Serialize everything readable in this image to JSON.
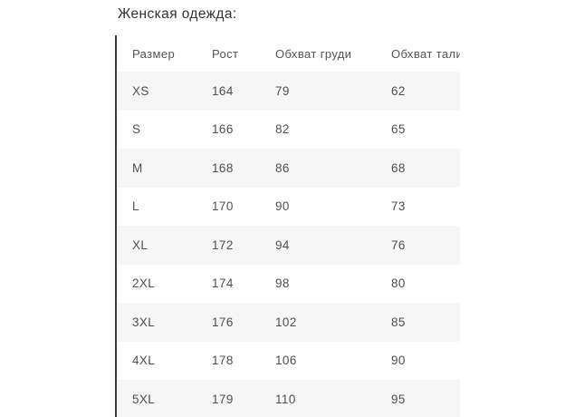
{
  "title": "Женская одежда:",
  "table": {
    "columns": [
      "Размер",
      "Рост",
      "Обхват груди",
      "Обхват талии"
    ],
    "rows": [
      {
        "size": "XS",
        "height": "164",
        "chest": "79",
        "waist": "62"
      },
      {
        "size": "S",
        "height": "166",
        "chest": "82",
        "waist": "65"
      },
      {
        "size": "M",
        "height": "168",
        "chest": "86",
        "waist": "68"
      },
      {
        "size": "L",
        "height": "170",
        "chest": "90",
        "waist": "73"
      },
      {
        "size": "XL",
        "height": "172",
        "chest": "94",
        "waist": "76"
      },
      {
        "size": "2XL",
        "height": "174",
        "chest": "98",
        "waist": "80"
      },
      {
        "size": "3XL",
        "height": "176",
        "chest": "102",
        "waist": "85"
      },
      {
        "size": "4XL",
        "height": "178",
        "chest": "106",
        "waist": "90"
      },
      {
        "size": "5XL",
        "height": "179",
        "chest": "110",
        "waist": "95"
      }
    ],
    "colors": {
      "zebra_row_bg": "#f6f6f6",
      "left_border": "#3d3d3d",
      "cell_text": "#4f4f4f",
      "title_text": "#333333"
    }
  }
}
